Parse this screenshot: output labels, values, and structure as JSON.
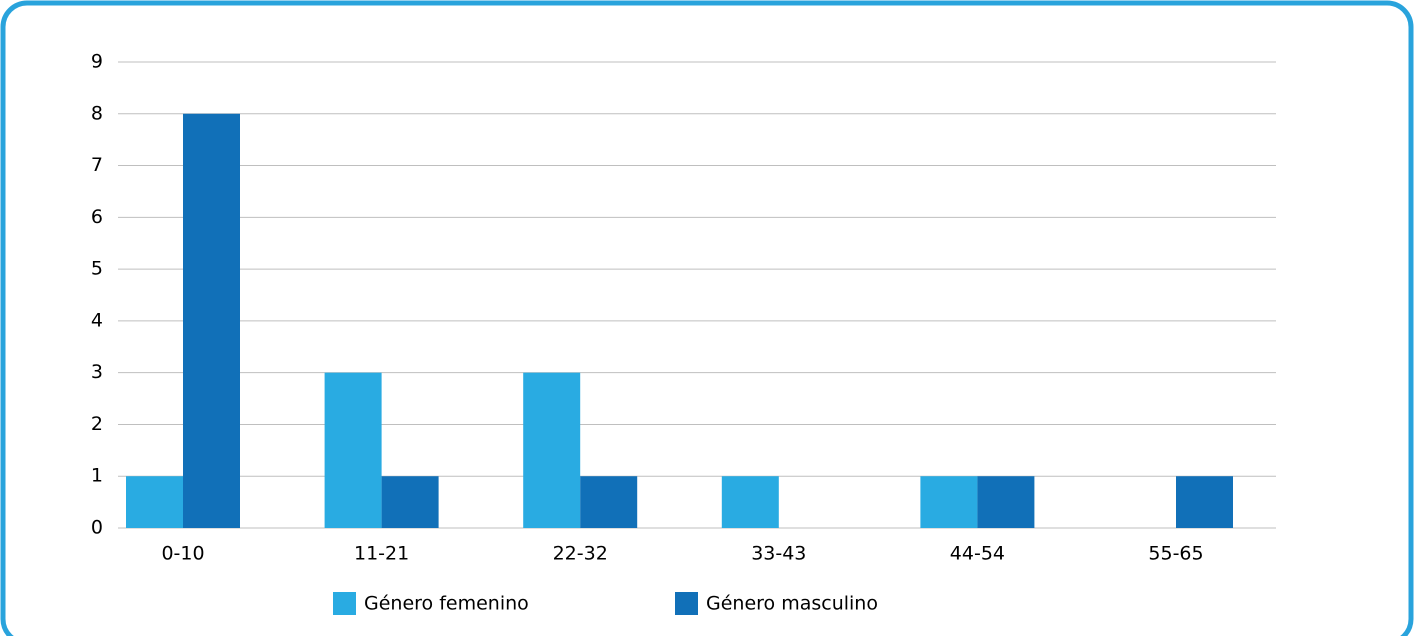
{
  "chart_data": {
    "type": "bar",
    "categories": [
      "0-10",
      "11-21",
      "22-32",
      "33-43",
      "44-54",
      "55-65"
    ],
    "series": [
      {
        "name": "Género femenino",
        "color": "#29abe2",
        "values": [
          1,
          3,
          3,
          1,
          1,
          0
        ]
      },
      {
        "name": "Género masculino",
        "color": "#1170b8",
        "values": [
          8,
          1,
          1,
          0,
          1,
          1
        ]
      }
    ],
    "ylim": [
      0,
      9
    ],
    "yticks": [
      0,
      1,
      2,
      3,
      4,
      5,
      6,
      7,
      8,
      9
    ],
    "grid": true,
    "legend": "bottom"
  }
}
